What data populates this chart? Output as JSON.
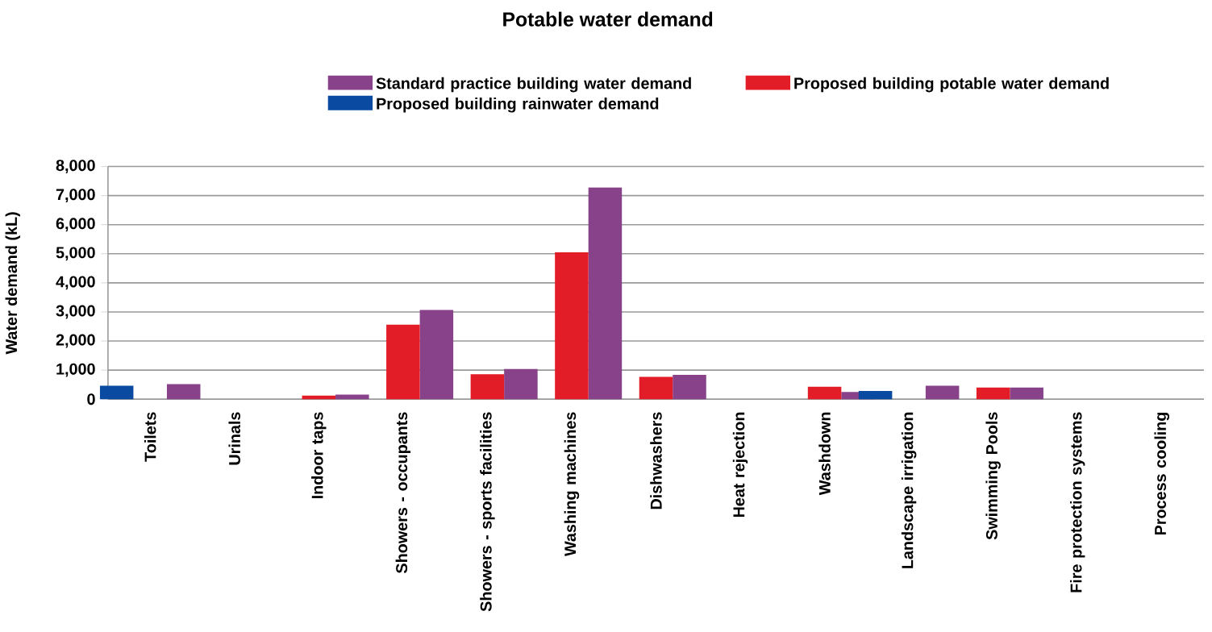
{
  "chart_data": {
    "type": "bar",
    "title": "Potable water demand",
    "ylabel": "Water demand (kL)",
    "categories": [
      "Toilets",
      "Urinals",
      "Indoor taps",
      "Showers - occupants",
      "Showers - sports facilities",
      "Washing machines",
      "Dishwashers",
      "Heat rejection",
      "Washdown",
      "Landscape irrigation",
      "Swimming Pools",
      "Fire protection systems",
      "Process cooling"
    ],
    "series": [
      {
        "name": "Standard practice building water demand",
        "color": "#87428a",
        "values": [
          520,
          0,
          160,
          3070,
          1040,
          7280,
          840,
          0,
          250,
          460,
          400,
          0,
          0
        ]
      },
      {
        "name": "Proposed building potable water demand",
        "color": "#e31d27",
        "values": [
          0,
          0,
          120,
          2560,
          860,
          5050,
          770,
          0,
          430,
          0,
          400,
          0,
          0
        ]
      },
      {
        "name": "Proposed building rainwater demand",
        "color": "#0a4aa0",
        "values": [
          460,
          0,
          0,
          0,
          0,
          0,
          0,
          0,
          0,
          280,
          0,
          0,
          0
        ]
      }
    ],
    "ylim": [
      0,
      8000
    ],
    "yticks": [
      {
        "value": 0,
        "label": "0"
      },
      {
        "value": 1000,
        "label": "1,000"
      },
      {
        "value": 2000,
        "label": "2,000"
      },
      {
        "value": 3000,
        "label": "3,000"
      },
      {
        "value": 4000,
        "label": "4,000"
      },
      {
        "value": 5000,
        "label": "5,000"
      },
      {
        "value": 6000,
        "label": "6,000"
      },
      {
        "value": 7000,
        "label": "7,000"
      },
      {
        "value": 8000,
        "label": "8,000"
      }
    ],
    "grid": "y",
    "legend": "top"
  }
}
